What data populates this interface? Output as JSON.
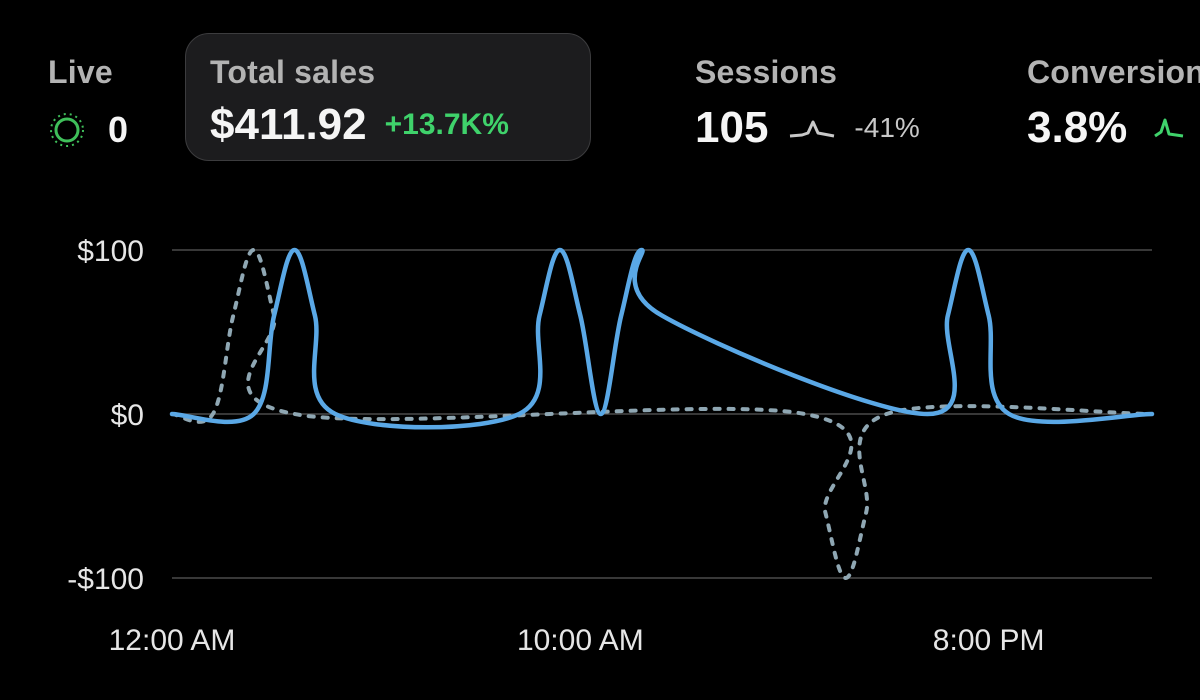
{
  "metrics": {
    "live": {
      "label": "Live",
      "value": "0",
      "icon": "live-pulse-icon"
    },
    "total_sales": {
      "label": "Total sales",
      "value": "$411.92",
      "change": "+13.7K%"
    },
    "sessions": {
      "label": "Sessions",
      "value": "105",
      "change": "-41%",
      "icon": "sparkline-icon"
    },
    "conversion": {
      "label": "Conversion",
      "value": "3.8%",
      "icon": "sparkline-icon"
    }
  },
  "colors": {
    "background": "#000000",
    "current_series": "#5aa8e6",
    "comparison_series": "#8fa7b3",
    "positive": "#3fd26b",
    "live": "#3fbf5a"
  },
  "chart_data": {
    "type": "line",
    "x_range_hours": [
      0,
      24
    ],
    "ylim": [
      -100,
      100
    ],
    "yticks": [
      100,
      0,
      -100
    ],
    "ytick_labels": [
      "$100",
      "$0",
      "-$100"
    ],
    "xticks_hours": [
      0,
      10,
      20
    ],
    "xtick_labels": [
      "12:00 AM",
      "10:00 AM",
      "8:00 PM"
    ],
    "grid": true,
    "series": [
      {
        "style": "solid",
        "color": "#5aa8e6",
        "x": [
          0,
          2,
          2.5,
          3,
          3.5,
          4,
          8.5,
          9,
          9.5,
          10,
          10.5,
          11,
          11.5,
          12,
          18.5,
          19,
          19.5,
          20,
          20.5,
          24
        ],
        "y": [
          0,
          0,
          60,
          100,
          60,
          0,
          0,
          60,
          100,
          60,
          0,
          60,
          100,
          60,
          0,
          60,
          100,
          60,
          0,
          0
        ]
      },
      {
        "style": "dashed",
        "color": "#8fa7b3",
        "x": [
          0,
          1,
          1.5,
          2,
          2.5,
          3,
          15.5,
          16,
          16.5,
          17,
          17.5,
          24
        ],
        "y": [
          0,
          0,
          60,
          100,
          60,
          0,
          0,
          -60,
          -100,
          -60,
          0,
          0
        ]
      }
    ]
  }
}
